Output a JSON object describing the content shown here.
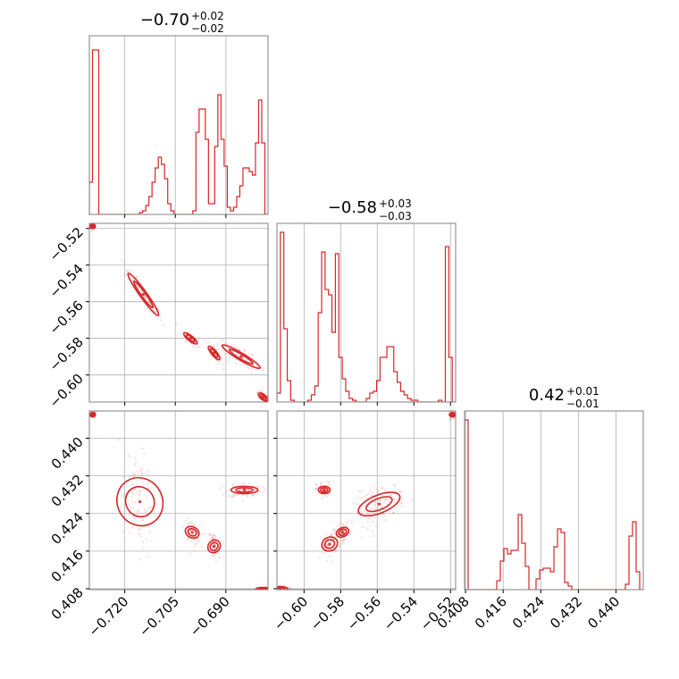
{
  "chart_data": {
    "type": "corner",
    "color": "#d62728",
    "titles": [
      {
        "value": "−0.70",
        "upper": "+0.02",
        "lower": "−0.02"
      },
      {
        "value": "−0.58",
        "upper": "+0.03",
        "lower": "−0.03"
      },
      {
        "value": "0.42",
        "upper": "+0.01",
        "lower": "−0.01"
      }
    ],
    "params": [
      {
        "range": [
          -0.7305,
          -0.6775
        ],
        "ticks": [
          -0.72,
          -0.705,
          -0.69
        ],
        "tick_labels": [
          "−0.720",
          "−0.705",
          "−0.690"
        ]
      },
      {
        "range": [
          -0.6148,
          -0.5172
        ],
        "ticks": [
          -0.6,
          -0.58,
          -0.56,
          -0.54,
          -0.52
        ],
        "tick_labels": [
          "−0.60",
          "−0.58",
          "−0.56",
          "−0.54",
          "−0.52"
        ]
      },
      {
        "range": [
          0.4078,
          0.4458
        ],
        "ticks": [
          0.408,
          0.416,
          0.424,
          0.432,
          0.44
        ],
        "tick_labels": [
          "0.408",
          "0.416",
          "0.424",
          "0.432",
          "0.440"
        ]
      }
    ],
    "histograms": [
      [
        0.18,
        0.92,
        0.92,
        0.0,
        0.0,
        0.0,
        0.0,
        0.0,
        0.0,
        0.0,
        0.0,
        0.0,
        0.0,
        0.0,
        0.0,
        0.0,
        0.01,
        0.02,
        0.05,
        0.1,
        0.18,
        0.26,
        0.32,
        0.28,
        0.2,
        0.06,
        0.02,
        0.0,
        0.0,
        0.0,
        0.0,
        0.0,
        0.0,
        0.02,
        0.46,
        0.59,
        0.59,
        0.42,
        0.06,
        0.06,
        0.38,
        0.67,
        0.42,
        0.27,
        0.04,
        0.02,
        0.04,
        0.1,
        0.16,
        0.26,
        0.26,
        0.24,
        0.22,
        0.4,
        0.64,
        0.4,
        0.0
      ],
      [
        0.05,
        0.95,
        0.41,
        0.12,
        0.01,
        0.0,
        0.0,
        0.0,
        0.0,
        0.01,
        0.04,
        0.09,
        0.5,
        0.84,
        0.63,
        0.6,
        0.39,
        0.83,
        0.25,
        0.13,
        0.06,
        0.02,
        0.01,
        0.0,
        0.0,
        0.0,
        0.02,
        0.05,
        0.06,
        0.12,
        0.25,
        0.25,
        0.31,
        0.31,
        0.17,
        0.11,
        0.06,
        0.04,
        0.02,
        0.01,
        0.01,
        0.0,
        0.0,
        0.0,
        0.0,
        0.0,
        0.0,
        0.01,
        0.0,
        0.87,
        0.25,
        0.0
      ],
      [
        0.95,
        0.0,
        0.0,
        0.0,
        0.0,
        0.0,
        0.0,
        0.0,
        0.0,
        0.05,
        0.16,
        0.23,
        0.2,
        0.22,
        0.22,
        0.42,
        0.26,
        0.13,
        0.0,
        0.0,
        0.06,
        0.11,
        0.12,
        0.12,
        0.1,
        0.24,
        0.34,
        0.32,
        0.04,
        0.02,
        0.0,
        0.0,
        0.0,
        0.0,
        0.0,
        0.0,
        0.0,
        0.0,
        0.0,
        0.0,
        0.0,
        0.0,
        0.0,
        0.0,
        0.0,
        0.03,
        0.3,
        0.38,
        0.1,
        0.0
      ]
    ],
    "scatter_clusters": {
      "p1_p0": [
        {
          "center": [
            -0.7295,
            -0.5188
          ],
          "spread": [
            0.0005,
            0.001
          ],
          "slope": 0,
          "n": 40
        },
        {
          "center": [
            -0.7145,
            -0.556
          ],
          "spread": [
            0.0028,
            0.002
          ],
          "slope": -1.4,
          "n": 90
        },
        {
          "center": [
            -0.7005,
            -0.58
          ],
          "spread": [
            0.0012,
            0.0015
          ],
          "slope": -0.8,
          "n": 60
        },
        {
          "center": [
            -0.6935,
            -0.588
          ],
          "spread": [
            0.001,
            0.0015
          ],
          "slope": -1.2,
          "n": 60
        },
        {
          "center": [
            -0.6855,
            -0.59
          ],
          "spread": [
            0.0035,
            0.002
          ],
          "slope": -0.6,
          "n": 90
        },
        {
          "center": [
            -0.679,
            -0.612
          ],
          "spread": [
            0.0008,
            0.0015
          ],
          "slope": -0.8,
          "n": 50
        }
      ],
      "p2_p0": [
        {
          "center": [
            -0.7295,
            0.445
          ],
          "spread": [
            0.0005,
            0.0004
          ],
          "slope": 0,
          "n": 40
        },
        {
          "center": [
            -0.7155,
            0.4265
          ],
          "spread": [
            0.0022,
            0.005
          ],
          "slope": -1.8,
          "n": 90
        },
        {
          "center": [
            -0.7,
            0.42
          ],
          "spread": [
            0.0012,
            0.0012
          ],
          "slope": -0.5,
          "n": 60
        },
        {
          "center": [
            -0.6935,
            0.417
          ],
          "spread": [
            0.0008,
            0.0015
          ],
          "slope": -0.9,
          "n": 60
        },
        {
          "center": [
            -0.6845,
            0.429
          ],
          "spread": [
            0.0025,
            0.0008
          ],
          "slope": 0,
          "n": 90
        },
        {
          "center": [
            -0.679,
            0.4078
          ],
          "spread": [
            0.0014,
            0.0003
          ],
          "slope": 0,
          "n": 50
        }
      ],
      "p2_p1": [
        {
          "center": [
            -0.613,
            0.408
          ],
          "spread": [
            0.0025,
            0.0003
          ],
          "slope": 0,
          "n": 40
        },
        {
          "center": [
            -0.589,
            0.429
          ],
          "spread": [
            0.002,
            0.0008
          ],
          "slope": 0,
          "n": 60
        },
        {
          "center": [
            -0.586,
            0.4175
          ],
          "spread": [
            0.0025,
            0.0015
          ],
          "slope": 0.45,
          "n": 60
        },
        {
          "center": [
            -0.579,
            0.42
          ],
          "spread": [
            0.002,
            0.001
          ],
          "slope": 0.45,
          "n": 60
        },
        {
          "center": [
            -0.559,
            0.426
          ],
          "spread": [
            0.007,
            0.002
          ],
          "slope": 0.4,
          "n": 110
        },
        {
          "center": [
            -0.519,
            0.445
          ],
          "spread": [
            0.001,
            0.0004
          ],
          "slope": 0,
          "n": 40
        }
      ]
    }
  }
}
